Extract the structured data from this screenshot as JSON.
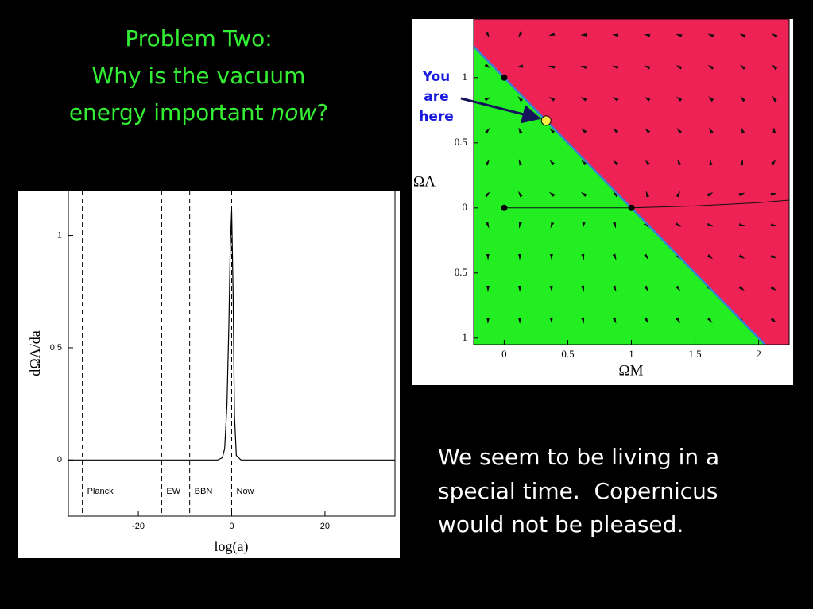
{
  "slide": {
    "title": [
      "Problem Two:",
      "Why is the vacuum",
      [
        "energy important ",
        "now",
        "?"
      ]
    ],
    "body": [
      "We seem to be living in a",
      "special time.  Copernicus",
      "would not be pleased."
    ]
  },
  "chart_data": [
    {
      "type": "line",
      "x_label": "log(a)",
      "y_label": "dΩΛ/da",
      "color": "#000000",
      "x": [
        -35,
        -3,
        -2,
        -1.5,
        -1,
        -0.6,
        -0.3,
        0,
        0.3,
        0.6,
        1,
        2,
        35
      ],
      "values": [
        0,
        0,
        0.01,
        0.05,
        0.25,
        0.6,
        0.95,
        1.11,
        0.75,
        0.2,
        0.02,
        0,
        0
      ],
      "xlim": [
        -35,
        35
      ],
      "ylim": [
        -0.25,
        1.2
      ],
      "xticks": [
        -20,
        0,
        20
      ],
      "yticks": [
        0,
        0.5,
        1
      ],
      "markers": [
        {
          "x": -32,
          "label": "Planck"
        },
        {
          "x": -15,
          "label": "EW"
        },
        {
          "x": -9,
          "label": "BBN"
        },
        {
          "x": 0,
          "label": "Now"
        }
      ]
    },
    {
      "type": "phase",
      "x_label": "ΩM",
      "y_label": "ΩΛ",
      "xlim": [
        -0.24,
        2.24
      ],
      "ylim": [
        -1.05,
        1.45
      ],
      "xticks": [
        0,
        0.5,
        1,
        1.5,
        2
      ],
      "yticks": [
        {
          "value": -1,
          "label": "−1"
        },
        {
          "value": -0.5,
          "label": "−0.5"
        },
        0,
        0.5,
        1
      ],
      "below_color": "#22ee22",
      "above_color": "#ee2255",
      "boundary_color": "#3a7fd5",
      "boundary": {
        "x": [
          -0.24,
          2.05
        ],
        "y": [
          1.24,
          -1.05
        ]
      },
      "trajectory": {
        "x": [
          0,
          1,
          1.5,
          2,
          2.24
        ],
        "y": [
          0,
          0,
          0.015,
          0.04,
          0.06
        ]
      },
      "points": {
        "x": [
          0,
          0,
          1
        ],
        "y": [
          1,
          0,
          0
        ]
      },
      "highlight": {
        "x": 0.33,
        "y": 0.67,
        "color": "#ffee44",
        "label": [
          "You",
          "are",
          "here"
        ]
      }
    }
  ]
}
